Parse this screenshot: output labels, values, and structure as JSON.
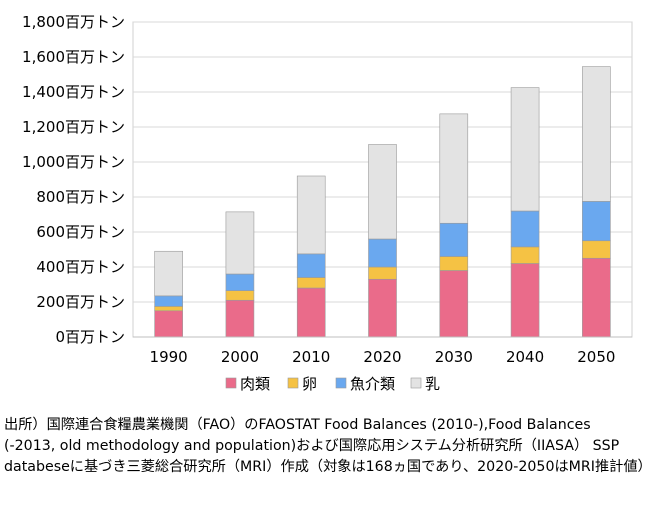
{
  "chart_data": {
    "type": "bar",
    "stacked": true,
    "title": "",
    "xlabel": "",
    "ylabel": "",
    "unit": "百万トン",
    "categories": [
      "1990",
      "2000",
      "2010",
      "2020",
      "2030",
      "2040",
      "2050"
    ],
    "ylim": [
      0,
      1800
    ],
    "yticks": [
      0,
      200,
      400,
      600,
      800,
      1000,
      1200,
      1400,
      1600,
      1800
    ],
    "ytick_labels": [
      "0百万トン",
      "200百万トン",
      "400百万トン",
      "600百万トン",
      "800百万トン",
      "1,000百万トン",
      "1,200百万トン",
      "1,400百万トン",
      "1,600百万トン",
      "1,800百万トン"
    ],
    "grid": "horizontal",
    "legend_position": "bottom",
    "series": [
      {
        "name": "肉類",
        "color": "#ea6b8a",
        "values": [
          150,
          210,
          280,
          330,
          380,
          420,
          450
        ]
      },
      {
        "name": "卵",
        "color": "#f5c244",
        "values": [
          25,
          55,
          60,
          70,
          80,
          95,
          100
        ]
      },
      {
        "name": "魚介類",
        "color": "#6aa8ef",
        "values": [
          60,
          95,
          135,
          160,
          190,
          205,
          225
        ]
      },
      {
        "name": "乳",
        "color": "#e3e3e3",
        "values": [
          255,
          355,
          445,
          540,
          625,
          705,
          770
        ]
      }
    ]
  },
  "source_note": "出所）国際連合食糧農業機関（FAO）のFAOSTAT Food Balances (2010-),Food Balances (-2013, old methodology and population)および国際応用システム分析研究所（IIASA） SSP databeseに基づき三菱総合研究所（MRI）作成（対象は168ヵ国であり、2020-2050はMRI推計値）"
}
